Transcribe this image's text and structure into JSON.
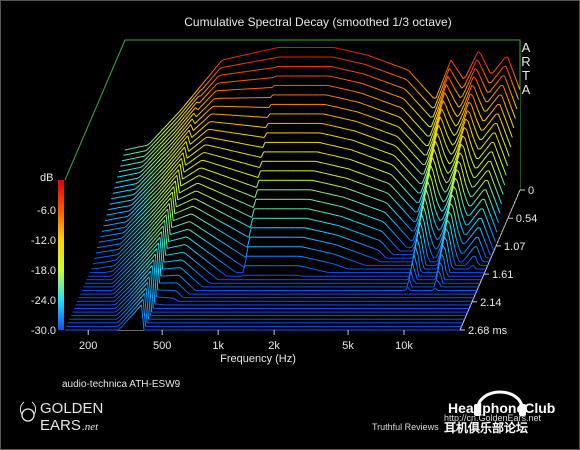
{
  "chart_data": {
    "type": "waterfall",
    "title": "Cumulative Spectral Decay (smoothed 1/3 octave)",
    "xlabel": "Frequency (Hz)",
    "zlabel": "dB",
    "x_ticks": [
      "200",
      "500",
      "1k",
      "2k",
      "5k",
      "10k"
    ],
    "x_tick_values": [
      200,
      500,
      1000,
      2000,
      5000,
      10000
    ],
    "x_range": [
      150,
      20000
    ],
    "z_ticks": [
      "-6.0",
      "-12.0",
      "-18.0",
      "-24.0",
      "-30.0"
    ],
    "z_range": [
      -30,
      0
    ],
    "time_ticks": [
      "0",
      "0.54",
      "1.07",
      "1.61",
      "2.14",
      "2.68 ms"
    ],
    "time_range": [
      0,
      2.68
    ],
    "watermark": "ARTA",
    "caption": "audio-technica ATH-ESW9",
    "slice_count": 40,
    "initial_response_db": [
      {
        "f": 150,
        "db": -22
      },
      {
        "f": 200,
        "db": -21
      },
      {
        "f": 300,
        "db": -14
      },
      {
        "f": 500,
        "db": -4
      },
      {
        "f": 1000,
        "db": -1.5
      },
      {
        "f": 2000,
        "db": -1.5
      },
      {
        "f": 3000,
        "db": -3
      },
      {
        "f": 5000,
        "db": -6
      },
      {
        "f": 7000,
        "db": -12
      },
      {
        "f": 8500,
        "db": -4
      },
      {
        "f": 10000,
        "db": -8
      },
      {
        "f": 12000,
        "db": -2
      },
      {
        "f": 14000,
        "db": -7
      },
      {
        "f": 17000,
        "db": -3
      },
      {
        "f": 20000,
        "db": -10
      }
    ]
  },
  "branding": {
    "logo_line1": "GOLDEN",
    "logo_line2": "EARS",
    "logo_net": ".net",
    "site_name": "HeadphoneClub",
    "site_url": "http://cn.GoldenEars.net",
    "site_cn": "耳机俱乐部论坛",
    "credit": "Truthful Reviews"
  }
}
